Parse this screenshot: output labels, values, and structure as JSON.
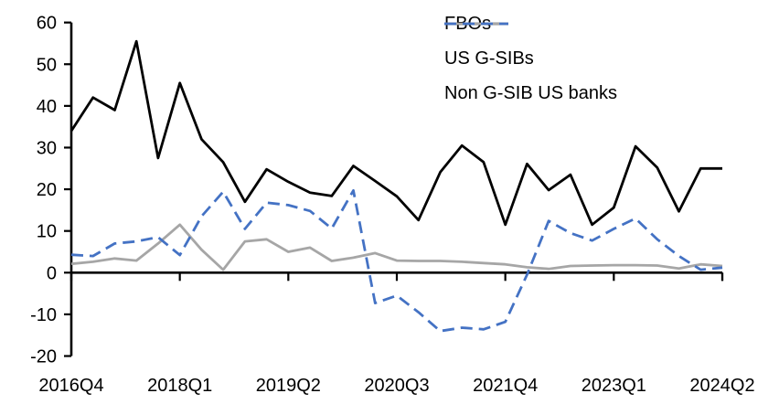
{
  "chart_data": {
    "type": "line",
    "title": "",
    "xlabel": "",
    "ylabel": "",
    "grid": false,
    "legend_position": "top-right",
    "ylim": [
      -20,
      60
    ],
    "y_ticks": [
      60,
      50,
      40,
      30,
      20,
      10,
      0,
      -10,
      -20
    ],
    "categories": [
      "2016Q4",
      "2017Q1",
      "2017Q2",
      "2017Q3",
      "2017Q4",
      "2018Q1",
      "2018Q2",
      "2018Q3",
      "2018Q4",
      "2019Q1",
      "2019Q2",
      "2019Q3",
      "2019Q4",
      "2020Q1",
      "2020Q2",
      "2020Q3",
      "2020Q4",
      "2021Q1",
      "2021Q2",
      "2021Q3",
      "2021Q4",
      "2022Q1",
      "2022Q2",
      "2022Q3",
      "2022Q4",
      "2023Q1",
      "2023Q2",
      "2023Q3",
      "2023Q4",
      "2024Q1",
      "2024Q2"
    ],
    "x_tick_labels": [
      "2016Q4",
      "2018Q1",
      "2019Q2",
      "2020Q3",
      "2021Q4",
      "2023Q1",
      "2024Q2"
    ],
    "x_tick_indices": [
      0,
      5,
      10,
      15,
      20,
      25,
      30
    ],
    "series": [
      {
        "name": "FBOs",
        "color": "#000000",
        "style": "solid",
        "values": [
          34,
          42,
          39,
          55.5,
          27.5,
          45.5,
          32,
          26.5,
          17,
          24.8,
          21.8,
          19.2,
          18.4,
          25.6,
          22,
          18.3,
          12.6,
          24.1,
          30.5,
          26.5,
          11.5,
          26.1,
          19.8,
          23.5,
          11.5,
          15.6,
          30.3,
          25.2,
          14.7,
          25,
          25
        ]
      },
      {
        "name": "US G-SIBs",
        "color": "#a6a6a6",
        "style": "solid",
        "values": [
          2.1,
          2.6,
          3.4,
          2.9,
          7,
          11.5,
          5.5,
          0.7,
          7.5,
          8,
          5,
          6,
          2.8,
          3.6,
          4.7,
          2.9,
          2.8,
          2.8,
          2.6,
          2.3,
          2,
          1.3,
          0.9,
          1.6,
          1.7,
          1.8,
          1.8,
          1.7,
          1,
          2,
          1.6
        ]
      },
      {
        "name": "Non G-SIB US banks",
        "color": "#4472c4",
        "style": "dashed",
        "values": [
          4.3,
          4,
          7,
          7.5,
          8.5,
          4.2,
          13.5,
          19.4,
          10.5,
          16.8,
          16.2,
          14.8,
          10.6,
          19.7,
          -7.3,
          -5.5,
          -9.5,
          -14,
          -13.2,
          -13.6,
          -11.8,
          -0.5,
          12.4,
          9.5,
          7.7,
          10.5,
          13,
          8,
          4,
          0.7,
          1.2
        ]
      }
    ]
  },
  "legend": {
    "items": [
      {
        "label": "FBOs"
      },
      {
        "label": "US G-SIBs"
      },
      {
        "label": "Non G-SIB US banks"
      }
    ]
  }
}
